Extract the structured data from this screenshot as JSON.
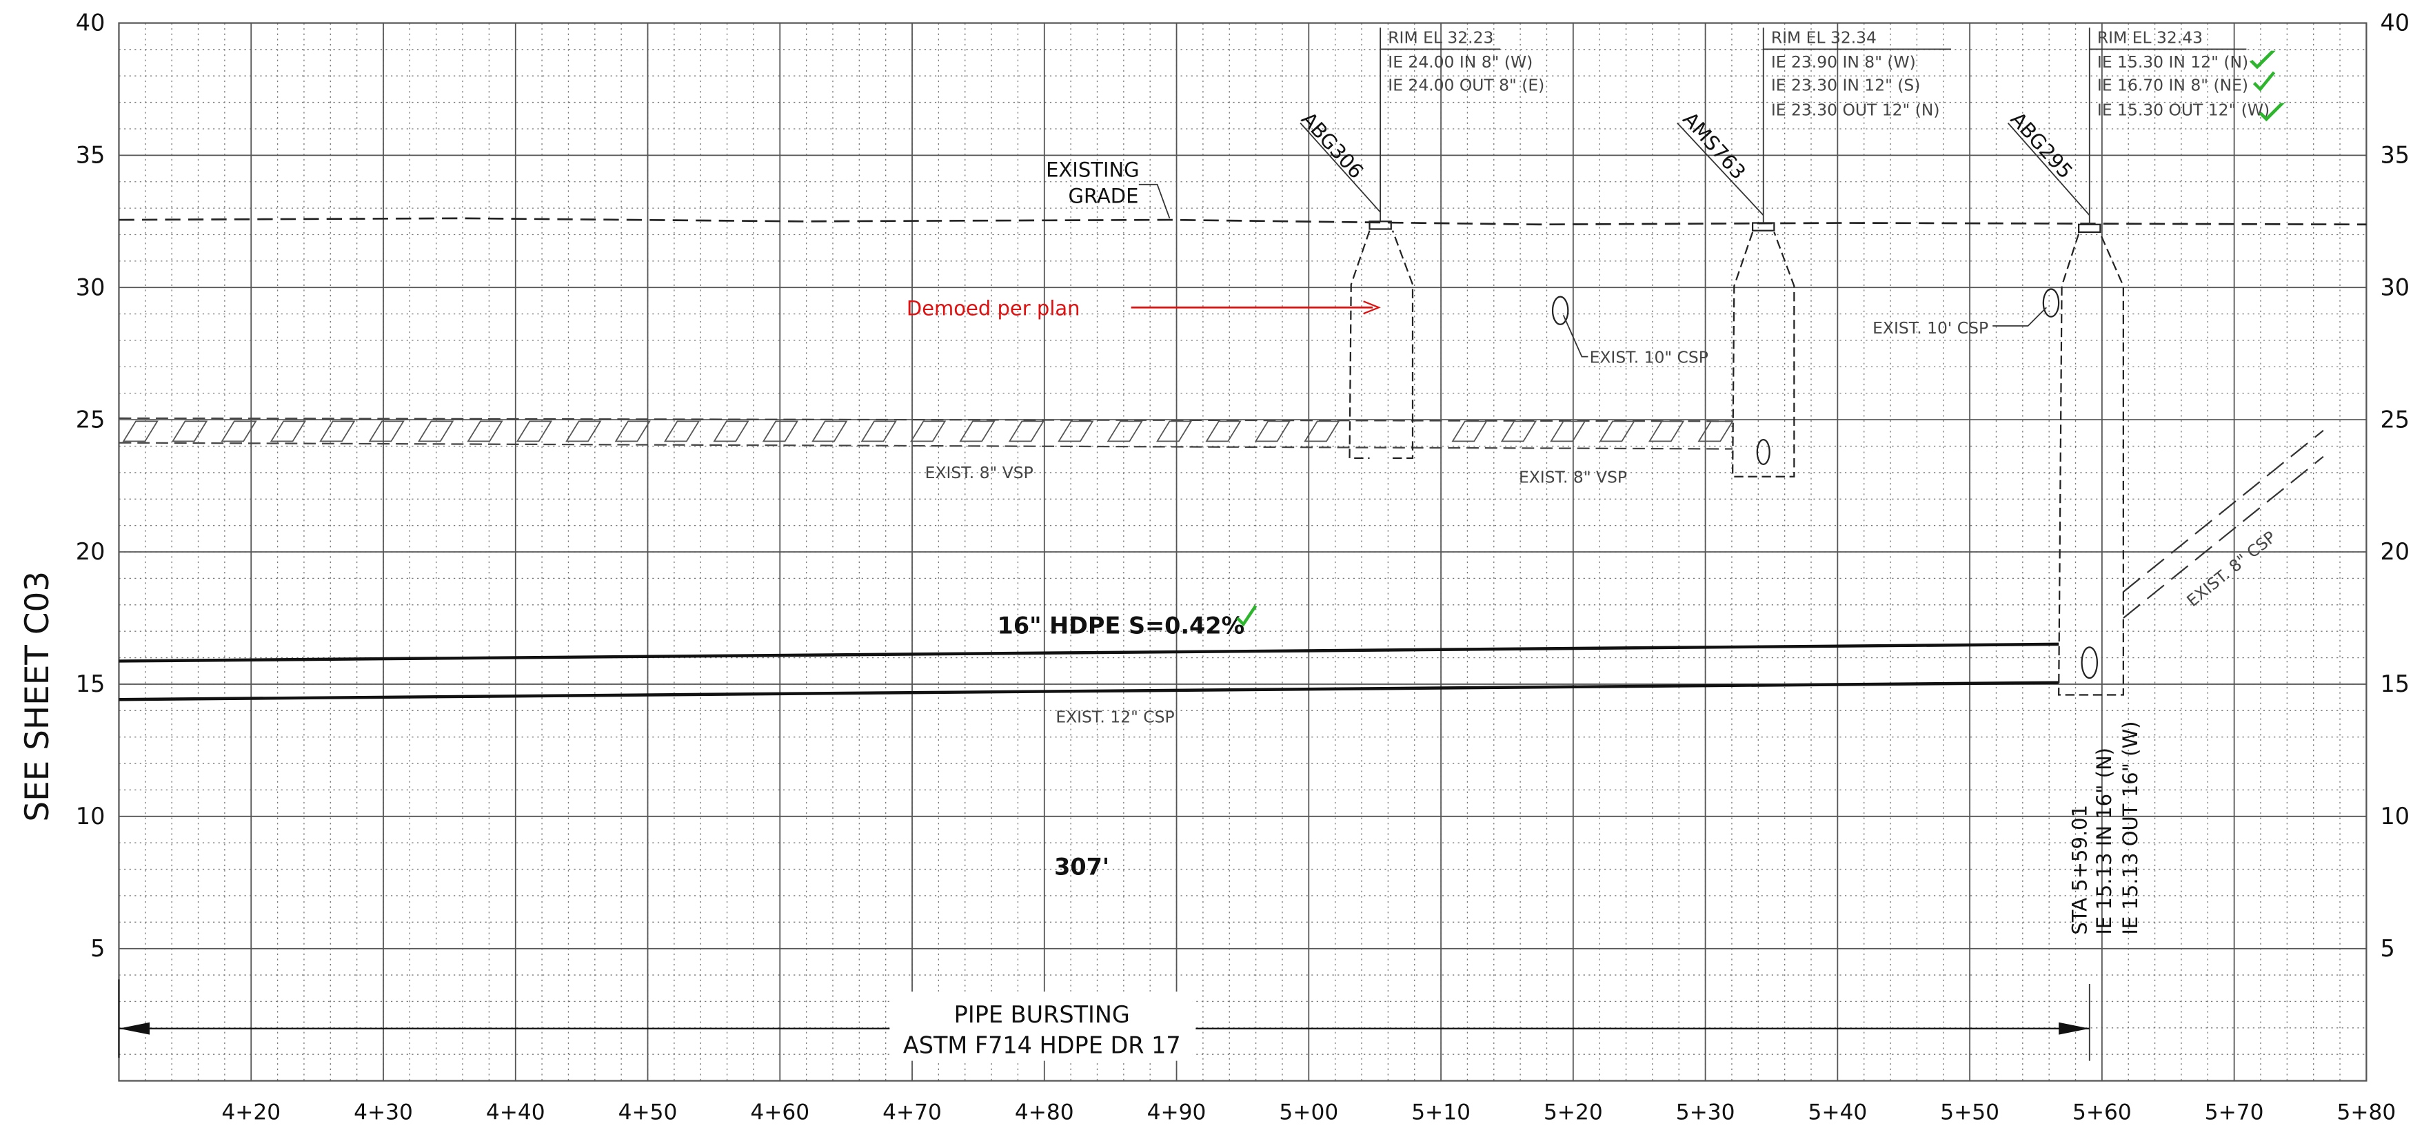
{
  "sheet_ref": "SEE SHEET C03",
  "axes": {
    "xlim": [
      410,
      580
    ],
    "ylim": [
      0,
      40
    ],
    "xticks": [
      {
        "value": 420,
        "label": "4+20"
      },
      {
        "value": 430,
        "label": "4+30"
      },
      {
        "value": 440,
        "label": "4+40"
      },
      {
        "value": 450,
        "label": "4+50"
      },
      {
        "value": 460,
        "label": "4+60"
      },
      {
        "value": 470,
        "label": "4+70"
      },
      {
        "value": 480,
        "label": "4+80"
      },
      {
        "value": 490,
        "label": "4+90"
      },
      {
        "value": 500,
        "label": "5+00"
      },
      {
        "value": 510,
        "label": "5+10"
      },
      {
        "value": 520,
        "label": "5+20"
      },
      {
        "value": 530,
        "label": "5+30"
      },
      {
        "value": 540,
        "label": "5+40"
      },
      {
        "value": 550,
        "label": "5+50"
      },
      {
        "value": 560,
        "label": "5+60"
      },
      {
        "value": 570,
        "label": "5+70"
      },
      {
        "value": 580,
        "label": "5+80"
      }
    ],
    "yticks": [
      5,
      10,
      15,
      20,
      25,
      30,
      35,
      40
    ]
  },
  "manholes": [
    {
      "id": "ABG306",
      "notes": [
        "RIM EL 32.23",
        "IE 24.00 IN 8\" (W)",
        "IE 24.00 OUT 8\" (E)"
      ]
    },
    {
      "id": "AMS763",
      "notes": [
        "RIM EL 32.34",
        "IE 23.90 IN 8\" (W)",
        "IE 23.30 IN 12\" (S)",
        "IE 23.30 OUT 12\" (N)"
      ]
    },
    {
      "id": "ABG295",
      "notes": [
        "RIM EL 32.43",
        "IE 15.30 IN 12\" (N)",
        "IE 16.70 IN 8\" (NE)",
        "IE 15.30 OUT 12\" (W)"
      ]
    }
  ],
  "existing_grade": [
    "EXISTING",
    "GRADE"
  ],
  "demo_note": "Demoed per plan",
  "pipe_labels": {
    "csp10_a": "EXIST. 10\" CSP",
    "csp10_b": "EXIST. 10' CSP",
    "vsp8_a": "EXIST. 8\" VSP",
    "vsp8_b": "EXIST. 8\" VSP",
    "hdpe": "16\" HDPE  S=0.42%",
    "csp12": "EXIST. 12\" CSP",
    "csp8": "EXIST. 8\" CSP"
  },
  "length": "307'",
  "station_notes": [
    "STA 5+59.01",
    "IE 15.13 IN 16\" (N)",
    "IE 15.13 OUT 16\" (W)"
  ],
  "method": [
    "PIPE BURSTING",
    "ASTM F714 HDPE DR 17"
  ]
}
